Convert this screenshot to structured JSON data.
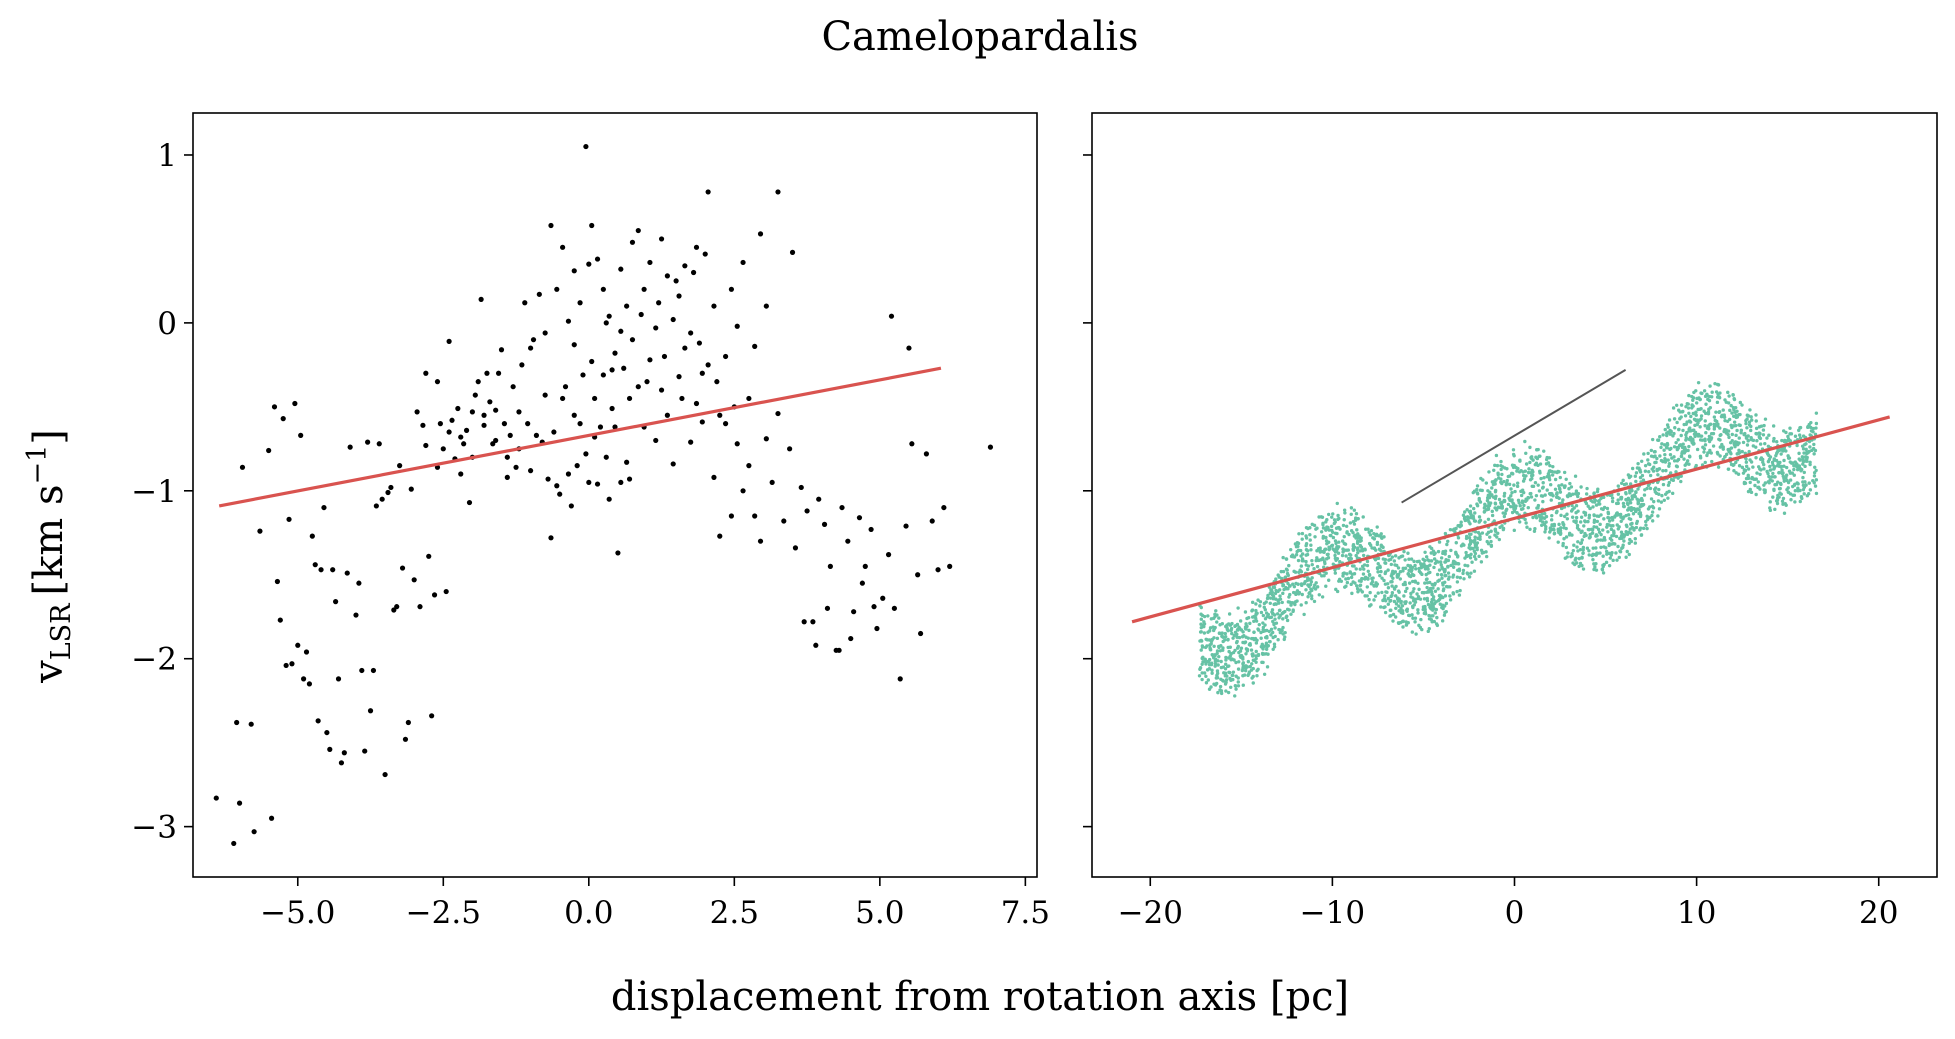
{
  "figure": {
    "title": "Camelopardalis",
    "xlabel": "displacement from rotation axis [pc]",
    "ylabel_main": "v",
    "ylabel_sub": "LSR",
    "ylabel_unit": "[km s",
    "ylabel_sup": "−1",
    "ylabel_close": "]"
  },
  "colors": {
    "observed_points": "#000000",
    "model_points": "#66c2a5",
    "fit_line": "#d9534f",
    "model_gradient_line": "#555555"
  },
  "chart_data": [
    {
      "type": "scatter",
      "panel": "left",
      "xlim": [
        -6.8,
        7.7
      ],
      "ylim": [
        -3.3,
        1.25
      ],
      "xticks": [
        -5.0,
        -2.5,
        0.0,
        2.5,
        5.0,
        7.5
      ],
      "xtick_labels": [
        "−5.0",
        "−2.5",
        "0.0",
        "2.5",
        "5.0",
        "7.5"
      ],
      "yticks": [
        1,
        0,
        -1,
        -2,
        -3
      ],
      "ytick_labels": [
        "1",
        "0",
        "−1",
        "−2",
        "−3"
      ],
      "grid": false,
      "points": [
        [
          -6.4,
          -2.83
        ],
        [
          -6.1,
          -3.1
        ],
        [
          -6.0,
          -2.86
        ],
        [
          -5.95,
          -0.86
        ],
        [
          -6.05,
          -2.38
        ],
        [
          -5.8,
          -2.39
        ],
        [
          -5.75,
          -3.03
        ],
        [
          -5.65,
          -1.24
        ],
        [
          -5.5,
          -0.76
        ],
        [
          -5.45,
          -2.95
        ],
        [
          -5.4,
          -0.5
        ],
        [
          -5.35,
          -1.54
        ],
        [
          -5.3,
          -1.77
        ],
        [
          -5.25,
          -0.57
        ],
        [
          -5.2,
          -2.04
        ],
        [
          -5.15,
          -1.17
        ],
        [
          -5.1,
          -2.03
        ],
        [
          -5.05,
          -0.48
        ],
        [
          -5.0,
          -1.92
        ],
        [
          -4.95,
          -0.67
        ],
        [
          -4.9,
          -2.12
        ],
        [
          -4.85,
          -1.96
        ],
        [
          -4.8,
          -2.15
        ],
        [
          -4.75,
          -1.27
        ],
        [
          -4.7,
          -1.44
        ],
        [
          -4.65,
          -2.37
        ],
        [
          -4.6,
          -1.47
        ],
        [
          -4.55,
          -1.1
        ],
        [
          -4.5,
          -2.44
        ],
        [
          -4.45,
          -2.54
        ],
        [
          -4.4,
          -1.47
        ],
        [
          -4.35,
          -1.66
        ],
        [
          -4.3,
          -2.12
        ],
        [
          -4.25,
          -2.62
        ],
        [
          -4.2,
          -2.56
        ],
        [
          -4.15,
          -1.49
        ],
        [
          -4.1,
          -0.74
        ],
        [
          -4.0,
          -1.74
        ],
        [
          -3.95,
          -1.55
        ],
        [
          -3.9,
          -2.07
        ],
        [
          -3.85,
          -2.55
        ],
        [
          -3.8,
          -0.71
        ],
        [
          -3.75,
          -2.31
        ],
        [
          -3.7,
          -2.07
        ],
        [
          -3.65,
          -1.09
        ],
        [
          -3.6,
          -0.72
        ],
        [
          -3.55,
          -1.05
        ],
        [
          -3.5,
          -2.69
        ],
        [
          -3.45,
          -1.01
        ],
        [
          -3.4,
          -0.98
        ],
        [
          -3.35,
          -1.71
        ],
        [
          -3.3,
          -1.69
        ],
        [
          -3.2,
          -1.46
        ],
        [
          -3.25,
          -0.85
        ],
        [
          -3.15,
          -2.48
        ],
        [
          -3.1,
          -2.38
        ],
        [
          -3.05,
          -0.99
        ],
        [
          -3.0,
          -1.53
        ],
        [
          -2.95,
          -0.53
        ],
        [
          -2.9,
          -1.69
        ],
        [
          -2.85,
          -0.61
        ],
        [
          -2.8,
          -0.73
        ],
        [
          -2.75,
          -1.39
        ],
        [
          -2.7,
          -2.34
        ],
        [
          -2.65,
          -1.62
        ],
        [
          -2.6,
          -0.86
        ],
        [
          -2.55,
          -0.6
        ],
        [
          -2.5,
          -0.75
        ],
        [
          -2.45,
          -1.6
        ],
        [
          -2.4,
          -0.11
        ],
        [
          -2.35,
          -0.58
        ],
        [
          -2.3,
          -0.81
        ],
        [
          -2.25,
          -0.51
        ],
        [
          -2.2,
          -0.9
        ],
        [
          -2.15,
          -0.72
        ],
        [
          -2.1,
          -0.64
        ],
        [
          -2.05,
          -1.07
        ],
        [
          -2.0,
          -0.53
        ],
        [
          -1.95,
          -0.43
        ],
        [
          -1.9,
          -0.35
        ],
        [
          -1.85,
          0.14
        ],
        [
          -1.8,
          -0.61
        ],
        [
          -1.75,
          -0.3
        ],
        [
          -1.7,
          -0.47
        ],
        [
          -1.65,
          -0.72
        ],
        [
          -1.6,
          -0.52
        ],
        [
          -1.55,
          -0.3
        ],
        [
          -1.5,
          -0.16
        ],
        [
          -1.45,
          -0.6
        ],
        [
          -1.4,
          -0.8
        ],
        [
          -1.35,
          -0.67
        ],
        [
          -1.3,
          -0.38
        ],
        [
          -1.25,
          -0.86
        ],
        [
          -1.2,
          -0.53
        ],
        [
          -1.15,
          -0.25
        ],
        [
          -1.1,
          0.12
        ],
        [
          -1.05,
          -0.6
        ],
        [
          -1.0,
          -0.88
        ],
        [
          -0.95,
          -0.1
        ],
        [
          -0.9,
          -0.67
        ],
        [
          -0.85,
          0.17
        ],
        [
          -0.8,
          -0.71
        ],
        [
          -0.75,
          -0.43
        ],
        [
          -0.7,
          -0.93
        ],
        [
          -0.65,
          -1.28
        ],
        [
          -0.6,
          -0.65
        ],
        [
          -0.55,
          -0.97
        ],
        [
          -0.5,
          -1.02
        ],
        [
          -0.45,
          -0.45
        ],
        [
          -0.4,
          -0.38
        ],
        [
          -0.35,
          -0.9
        ],
        [
          -0.3,
          -1.09
        ],
        [
          -0.25,
          -0.55
        ],
        [
          -0.2,
          -0.85
        ],
        [
          -0.15,
          -0.6
        ],
        [
          -0.1,
          -0.31
        ],
        [
          -0.05,
          -0.78
        ],
        [
          0.0,
          -0.95
        ],
        [
          0.05,
          -0.23
        ],
        [
          0.1,
          -0.68
        ],
        [
          0.15,
          -0.96
        ],
        [
          0.2,
          -0.62
        ],
        [
          0.25,
          -0.31
        ],
        [
          0.3,
          -0.8
        ],
        [
          0.35,
          -1.05
        ],
        [
          0.4,
          -0.51
        ],
        [
          0.45,
          -0.62
        ],
        [
          0.5,
          -1.37
        ],
        [
          0.55,
          -0.95
        ],
        [
          0.6,
          -0.27
        ],
        [
          0.65,
          -0.83
        ],
        [
          0.7,
          -0.93
        ],
        [
          0.75,
          -0.1
        ],
        [
          -0.75,
          -0.06
        ],
        [
          -0.65,
          0.58
        ],
        [
          -0.55,
          0.2
        ],
        [
          -0.45,
          0.45
        ],
        [
          -0.35,
          0.01
        ],
        [
          -0.25,
          -0.13
        ],
        [
          -0.15,
          0.12
        ],
        [
          -0.05,
          1.05
        ],
        [
          0.05,
          0.58
        ],
        [
          0.15,
          0.38
        ],
        [
          0.25,
          0.2
        ],
        [
          0.35,
          0.04
        ],
        [
          0.45,
          -0.18
        ],
        [
          0.55,
          0.32
        ],
        [
          0.65,
          0.1
        ],
        [
          0.75,
          0.48
        ],
        [
          0.85,
          0.55
        ],
        [
          0.95,
          0.2
        ],
        [
          1.05,
          0.36
        ],
        [
          1.15,
          -0.03
        ],
        [
          1.25,
          0.5
        ],
        [
          1.35,
          0.28
        ],
        [
          1.45,
          0.02
        ],
        [
          1.55,
          0.16
        ],
        [
          1.65,
          0.34
        ],
        [
          1.75,
          -0.06
        ],
        [
          1.85,
          0.45
        ],
        [
          1.95,
          -0.3
        ],
        [
          2.05,
          0.78
        ],
        [
          2.15,
          0.1
        ],
        [
          2.25,
          -0.55
        ],
        [
          2.35,
          -0.2
        ],
        [
          2.45,
          0.2
        ],
        [
          2.55,
          -0.02
        ],
        [
          2.65,
          0.36
        ],
        [
          2.75,
          -0.45
        ],
        [
          2.85,
          -0.14
        ],
        [
          2.95,
          0.53
        ],
        [
          3.05,
          0.1
        ],
        [
          3.25,
          0.78
        ],
        [
          3.5,
          0.42
        ],
        [
          0.85,
          -0.38
        ],
        [
          0.95,
          -0.62
        ],
        [
          1.05,
          -0.22
        ],
        [
          1.15,
          -0.7
        ],
        [
          1.25,
          -0.4
        ],
        [
          1.35,
          -0.55
        ],
        [
          1.45,
          -0.84
        ],
        [
          1.55,
          -0.32
        ],
        [
          1.65,
          -0.15
        ],
        [
          1.75,
          -0.71
        ],
        [
          1.85,
          -0.48
        ],
        [
          1.95,
          -0.59
        ],
        [
          2.05,
          -0.25
        ],
        [
          2.15,
          -0.92
        ],
        [
          2.25,
          -1.27
        ],
        [
          2.35,
          -0.6
        ],
        [
          2.45,
          -1.15
        ],
        [
          2.55,
          -0.72
        ],
        [
          2.65,
          -1.0
        ],
        [
          2.75,
          -0.85
        ],
        [
          2.85,
          -1.15
        ],
        [
          2.95,
          -1.3
        ],
        [
          3.05,
          -0.69
        ],
        [
          3.15,
          -0.95
        ],
        [
          3.25,
          -0.54
        ],
        [
          3.35,
          -1.18
        ],
        [
          3.45,
          -0.75
        ],
        [
          3.55,
          -1.34
        ],
        [
          3.65,
          -0.98
        ],
        [
          3.75,
          -1.12
        ],
        [
          3.85,
          -1.78
        ],
        [
          3.95,
          -1.05
        ],
        [
          4.05,
          -1.2
        ],
        [
          4.15,
          -1.45
        ],
        [
          4.25,
          -1.95
        ],
        [
          4.35,
          -1.1
        ],
        [
          4.45,
          -1.3
        ],
        [
          4.55,
          -1.72
        ],
        [
          4.65,
          -1.16
        ],
        [
          4.75,
          -1.45
        ],
        [
          4.85,
          -1.23
        ],
        [
          4.95,
          -1.82
        ],
        [
          5.05,
          -1.64
        ],
        [
          5.15,
          -1.38
        ],
        [
          5.25,
          -1.7
        ],
        [
          5.35,
          -2.12
        ],
        [
          5.45,
          -1.21
        ],
        [
          5.55,
          -0.72
        ],
        [
          5.65,
          -1.5
        ],
        [
          5.7,
          -1.85
        ],
        [
          5.8,
          -0.78
        ],
        [
          5.9,
          -1.18
        ],
        [
          6.0,
          -1.47
        ],
        [
          6.1,
          -1.1
        ],
        [
          6.2,
          -1.45
        ],
        [
          5.2,
          0.04
        ],
        [
          5.5,
          -0.15
        ],
        [
          6.9,
          -0.74
        ],
        [
          4.1,
          -1.7
        ],
        [
          4.3,
          -1.95
        ],
        [
          4.5,
          -1.88
        ],
        [
          3.9,
          -1.92
        ],
        [
          3.7,
          -1.78
        ],
        [
          4.7,
          -1.55
        ],
        [
          4.9,
          -1.69
        ],
        [
          -0.25,
          0.31
        ],
        [
          0.0,
          0.35
        ],
        [
          0.3,
          0.0
        ],
        [
          0.55,
          -0.05
        ],
        [
          0.9,
          0.05
        ],
        [
          1.2,
          0.12
        ],
        [
          1.5,
          0.25
        ],
        [
          1.8,
          0.3
        ],
        [
          2.0,
          0.41
        ],
        [
          0.1,
          -0.45
        ],
        [
          0.4,
          -0.28
        ],
        [
          0.7,
          -0.45
        ],
        [
          1.0,
          -0.35
        ],
        [
          1.3,
          -0.2
        ],
        [
          1.6,
          -0.45
        ],
        [
          1.9,
          -0.12
        ],
        [
          2.2,
          -0.35
        ],
        [
          2.5,
          -0.5
        ],
        [
          -1.0,
          -0.15
        ],
        [
          -1.2,
          -0.75
        ],
        [
          -1.4,
          -0.92
        ],
        [
          -1.6,
          -0.7
        ],
        [
          -1.8,
          -0.55
        ],
        [
          -2.0,
          -0.8
        ],
        [
          -2.2,
          -0.68
        ],
        [
          -2.4,
          -0.65
        ],
        [
          -2.6,
          -0.35
        ],
        [
          -2.8,
          -0.3
        ]
      ],
      "fit_line": {
        "x": [
          -6.35,
          6.05
        ],
        "y": [
          -1.09,
          -0.27
        ]
      }
    },
    {
      "type": "scatter",
      "panel": "right",
      "xlim": [
        -23.2,
        23.2
      ],
      "ylim": [
        -3.3,
        1.25
      ],
      "xticks": [
        -20,
        -10,
        0,
        10,
        20
      ],
      "xtick_labels": [
        "−20",
        "−10",
        "0",
        "10",
        "20"
      ],
      "yticks": [
        1,
        0,
        -1,
        -2,
        -3
      ],
      "ytick_labels": [],
      "grid": false,
      "model_band": {
        "x_range": [
          -17.3,
          16.6
        ],
        "trend_intercept": -1.2,
        "trend_slope": 0.036,
        "wave_amplitude": 0.22,
        "wave_period": 10.2,
        "width": 0.28,
        "n_points": 3000
      },
      "fit_line": {
        "x": [
          -21.0,
          20.6
        ],
        "y": [
          -1.78,
          -0.56
        ]
      },
      "model_gradient_line": {
        "x": [
          -6.2,
          6.1
        ],
        "y": [
          -1.07,
          -0.28
        ]
      }
    }
  ]
}
